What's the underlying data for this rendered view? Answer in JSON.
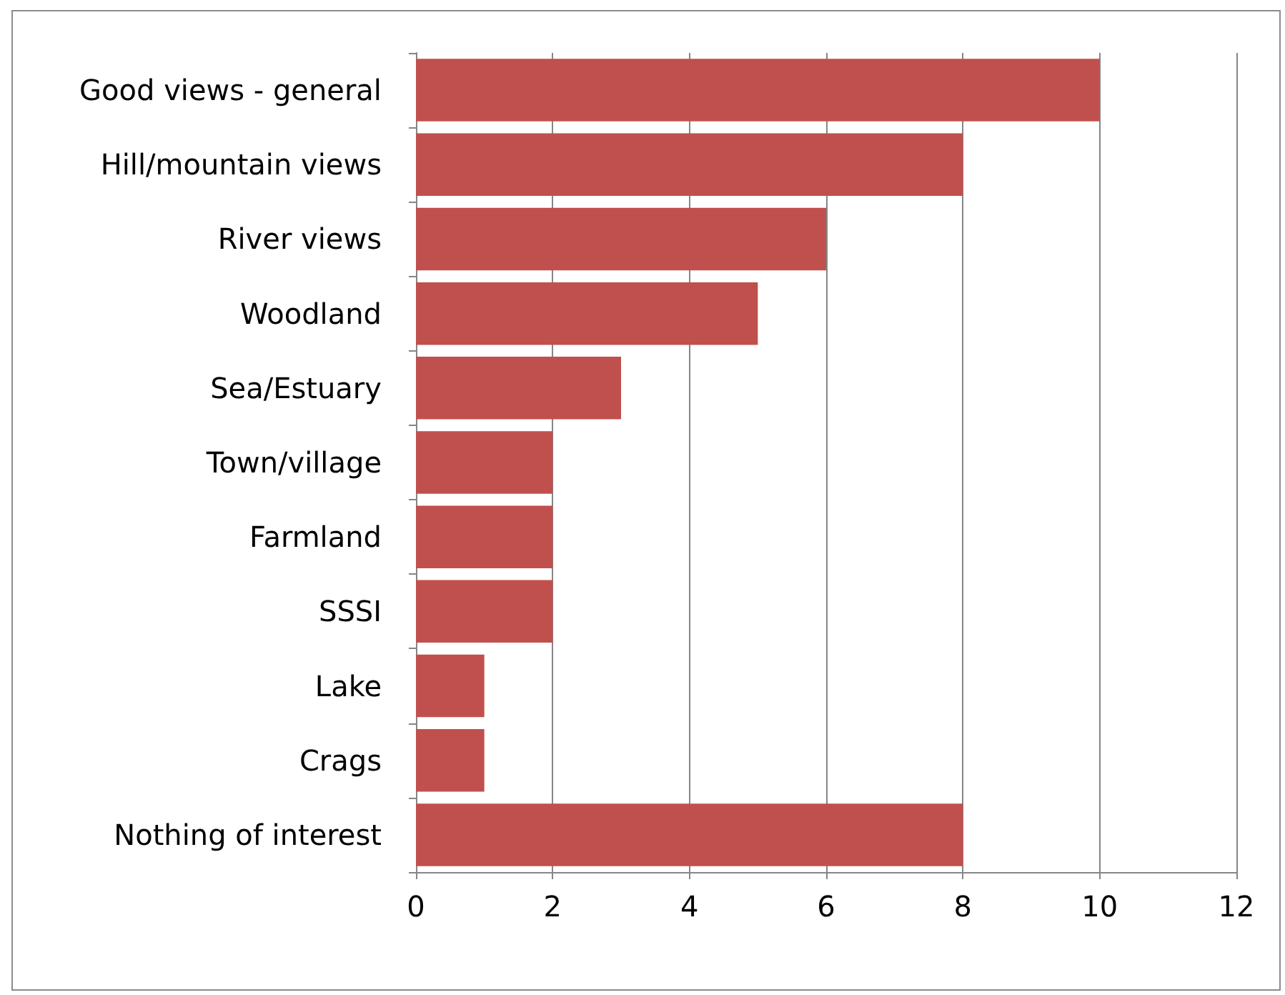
{
  "chart_data": {
    "type": "bar",
    "orientation": "horizontal",
    "categories": [
      "Good views - general",
      "Hill/mountain views",
      "River views",
      "Woodland",
      "Sea/Estuary",
      "Town/village",
      "Farmland",
      "SSSI",
      "Lake",
      "Crags",
      "Nothing of interest"
    ],
    "values": [
      10,
      8,
      6,
      5,
      3,
      2,
      2,
      2,
      1,
      1,
      8
    ],
    "color": "#c0504d",
    "xlim": [
      0,
      12
    ],
    "xticks": [
      0,
      2,
      4,
      6,
      8,
      10,
      12
    ],
    "grid": "x"
  }
}
